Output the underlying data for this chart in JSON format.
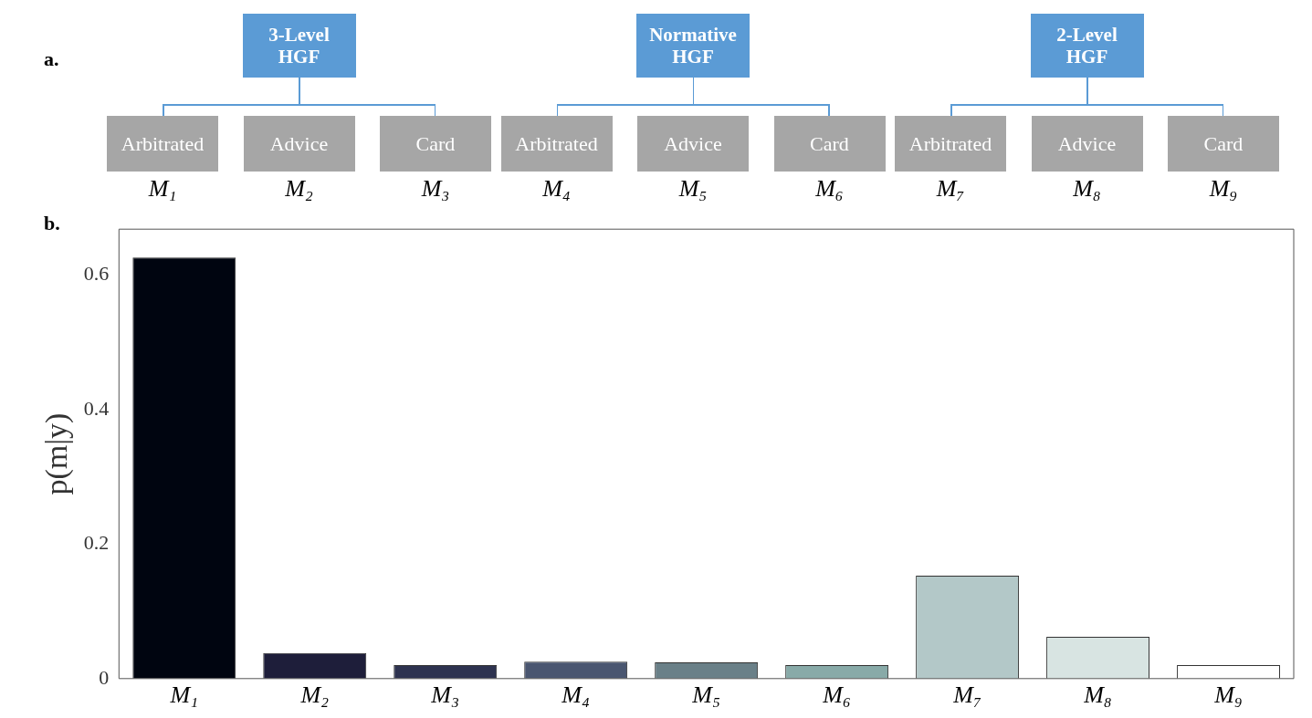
{
  "chart_data": [
    {
      "type": "other",
      "annotations": [
        "a.",
        "3-Level HGF",
        "Arbitrated",
        "Advice",
        "Card",
        "M₁",
        "M₂",
        "M₃",
        "Normative HGF",
        "Arbitrated",
        "Advice",
        "Card",
        "M₄",
        "M₅",
        "M₆",
        "2-Level HGF",
        "Arbitrated",
        "Advice",
        "Card",
        "M₇",
        "M₈",
        "M₉"
      ]
    },
    {
      "type": "bar",
      "annotations": [
        "b."
      ],
      "ylabel": "p(m|y)",
      "categories": [
        "M₁",
        "M₂",
        "M₃",
        "M₄",
        "M₅",
        "M₆",
        "M₇",
        "M₈",
        "M₉"
      ],
      "values": [
        0.626,
        0.038,
        0.02,
        0.025,
        0.024,
        0.02,
        0.153,
        0.062,
        0.02
      ],
      "colors": [
        "#000510",
        "#1e1e3a",
        "#2e3350",
        "#4a5670",
        "#6a8088",
        "#88aaa8",
        "#b3c8c8",
        "#d8e4e2",
        "#ffffff"
      ],
      "ylim": [
        0,
        0.668
      ],
      "yticks": [
        0,
        0.2,
        0.4,
        0.6
      ]
    }
  ]
}
